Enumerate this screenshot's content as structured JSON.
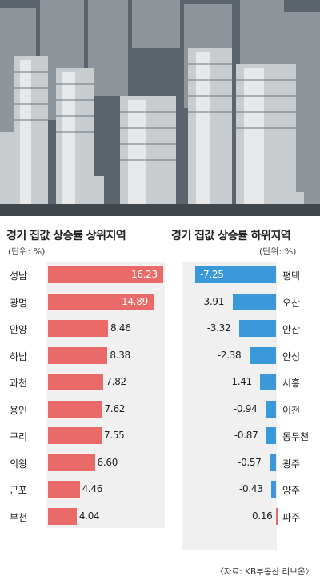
{
  "colors": {
    "positive": "#ea6a6a",
    "negative": "#3a9ad9",
    "panel_bg": "#f0f0f0"
  },
  "left": {
    "title": "경기 집값 상승률 상위지역",
    "unit": "(단위: %)"
  },
  "right": {
    "title": "경기 집값 상승률 하위지역",
    "unit": "(단위: %)"
  },
  "source": "〈자료: KB부동산 리브온〉",
  "chart_data": [
    {
      "type": "bar",
      "title": "경기 집값 상승률 상위지역",
      "unit": "(단위: %)",
      "categories": [
        "성남",
        "광명",
        "안양",
        "하남",
        "과천",
        "용인",
        "구리",
        "의왕",
        "군포",
        "부천"
      ],
      "values": [
        16.23,
        14.89,
        8.46,
        8.38,
        7.82,
        7.62,
        7.55,
        6.6,
        4.46,
        4.04
      ],
      "labels": [
        "16.23",
        "14.89",
        "8.46",
        "8.38",
        "7.82",
        "7.62",
        "7.55",
        "6.60",
        "4.46",
        "4.04"
      ],
      "orientation": "horizontal",
      "xlim": [
        0,
        16.23
      ]
    },
    {
      "type": "bar",
      "title": "경기 집값 상승률 하위지역",
      "unit": "(단위: %)",
      "categories": [
        "평택",
        "오산",
        "안산",
        "안성",
        "시흥",
        "이천",
        "동두천",
        "광주",
        "양주",
        "파주"
      ],
      "values": [
        -7.25,
        -3.91,
        -3.32,
        -2.38,
        -1.41,
        -0.94,
        -0.87,
        -0.57,
        -0.43,
        0.16
      ],
      "labels": [
        "-7.25",
        "-3.91",
        "-3.32",
        "-2.38",
        "-1.41",
        "-0.94",
        "-0.87",
        "-0.57",
        "-0.43",
        "0.16"
      ],
      "orientation": "horizontal",
      "xlim": [
        -7.25,
        0.16
      ]
    }
  ]
}
